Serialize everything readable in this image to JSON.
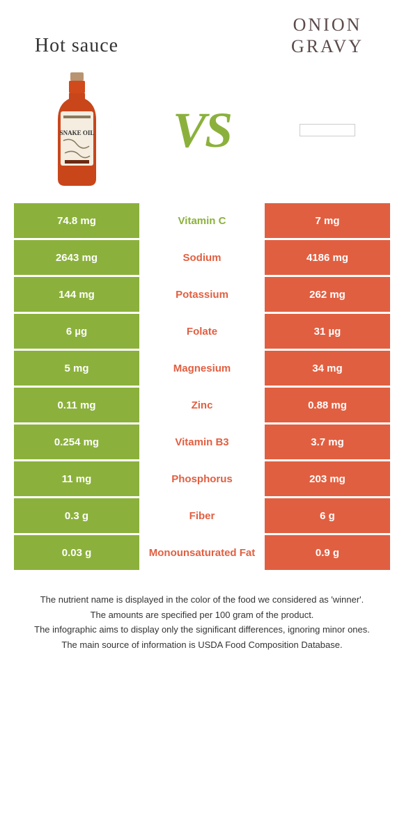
{
  "titles": {
    "left": "Hot sauce",
    "right": "ONION GRAVY"
  },
  "vs_label": "VS",
  "colors": {
    "left": "#8bb13c",
    "right": "#e15f41",
    "mid_left": "#8bb13c",
    "mid_right": "#e15f41",
    "background": "#ffffff"
  },
  "rows": [
    {
      "left": "74.8 mg",
      "label": "Vitamin C",
      "right": "7 mg",
      "winner": "left"
    },
    {
      "left": "2643 mg",
      "label": "Sodium",
      "right": "4186 mg",
      "winner": "right"
    },
    {
      "left": "144 mg",
      "label": "Potassium",
      "right": "262 mg",
      "winner": "right"
    },
    {
      "left": "6 µg",
      "label": "Folate",
      "right": "31 µg",
      "winner": "right"
    },
    {
      "left": "5 mg",
      "label": "Magnesium",
      "right": "34 mg",
      "winner": "right"
    },
    {
      "left": "0.11 mg",
      "label": "Zinc",
      "right": "0.88 mg",
      "winner": "right"
    },
    {
      "left": "0.254 mg",
      "label": "Vitamin B3",
      "right": "3.7 mg",
      "winner": "right"
    },
    {
      "left": "11 mg",
      "label": "Phosphorus",
      "right": "203 mg",
      "winner": "right"
    },
    {
      "left": "0.3 g",
      "label": "Fiber",
      "right": "6 g",
      "winner": "right"
    },
    {
      "left": "0.03 g",
      "label": "Monounsaturated Fat",
      "right": "0.9 g",
      "winner": "right"
    }
  ],
  "footnotes": [
    "The nutrient name is displayed in the color of the food we considered as 'winner'.",
    "The amounts are specified per 100 gram of the product.",
    "The infographic aims to display only the significant differences, ignoring minor ones.",
    "The main source of information is USDA Food Composition Database."
  ]
}
